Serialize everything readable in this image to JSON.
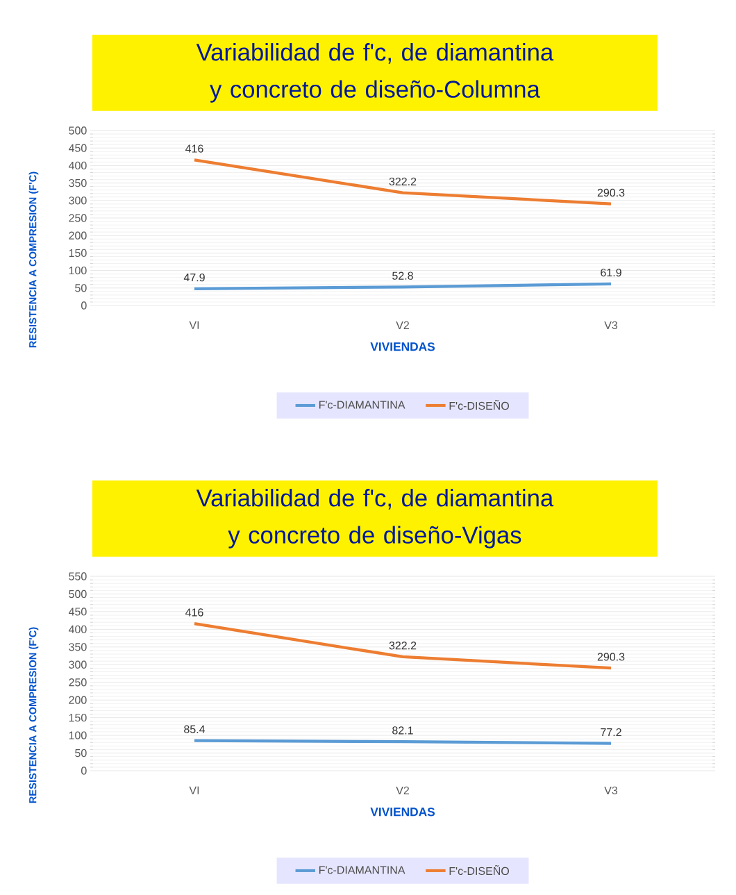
{
  "chart_data": [
    {
      "type": "line",
      "title": "Variabilidad de f'c, de diamantina y concreto de diseño-Columna",
      "xlabel": "VIVIENDAS",
      "ylabel": "RESISTENCIA A COMPRESION (F'C)",
      "categories": [
        "VI",
        "V2",
        "V3"
      ],
      "series": [
        {
          "name": "F'c-DIAMANTINA",
          "color": "#5b9bd5",
          "values": [
            47.9,
            52.8,
            61.9
          ]
        },
        {
          "name": "F'c-DISEÑO",
          "color": "#ed7d31",
          "values": [
            416,
            322.2,
            290.3
          ]
        }
      ],
      "ylim": [
        0,
        500
      ],
      "yticks": [
        0,
        50,
        100,
        150,
        200,
        250,
        300,
        350,
        400,
        450,
        500
      ],
      "grid": "y",
      "legend": "bottom",
      "data_labels": true,
      "marker": "none"
    },
    {
      "type": "line",
      "title": "Variabilidad de f'c, de diamantina y concreto de diseño-Vigas",
      "xlabel": "VIVIENDAS",
      "ylabel": "RESISTENCIA A COMPRESION (F'C)",
      "categories": [
        "VI",
        "V2",
        "V3"
      ],
      "series": [
        {
          "name": "F'c-DIAMANTINA",
          "color": "#5b9bd5",
          "values": [
            85.4,
            82.1,
            77.2
          ]
        },
        {
          "name": "F'c-DISEÑO",
          "color": "#ed7d31",
          "values": [
            416,
            322.2,
            290.3
          ]
        }
      ],
      "ylim": [
        0,
        550
      ],
      "yticks": [
        0,
        50,
        100,
        150,
        200,
        250,
        300,
        350,
        400,
        450,
        500,
        550
      ],
      "grid": "y",
      "legend": "bottom",
      "data_labels": true,
      "marker": "none"
    }
  ]
}
